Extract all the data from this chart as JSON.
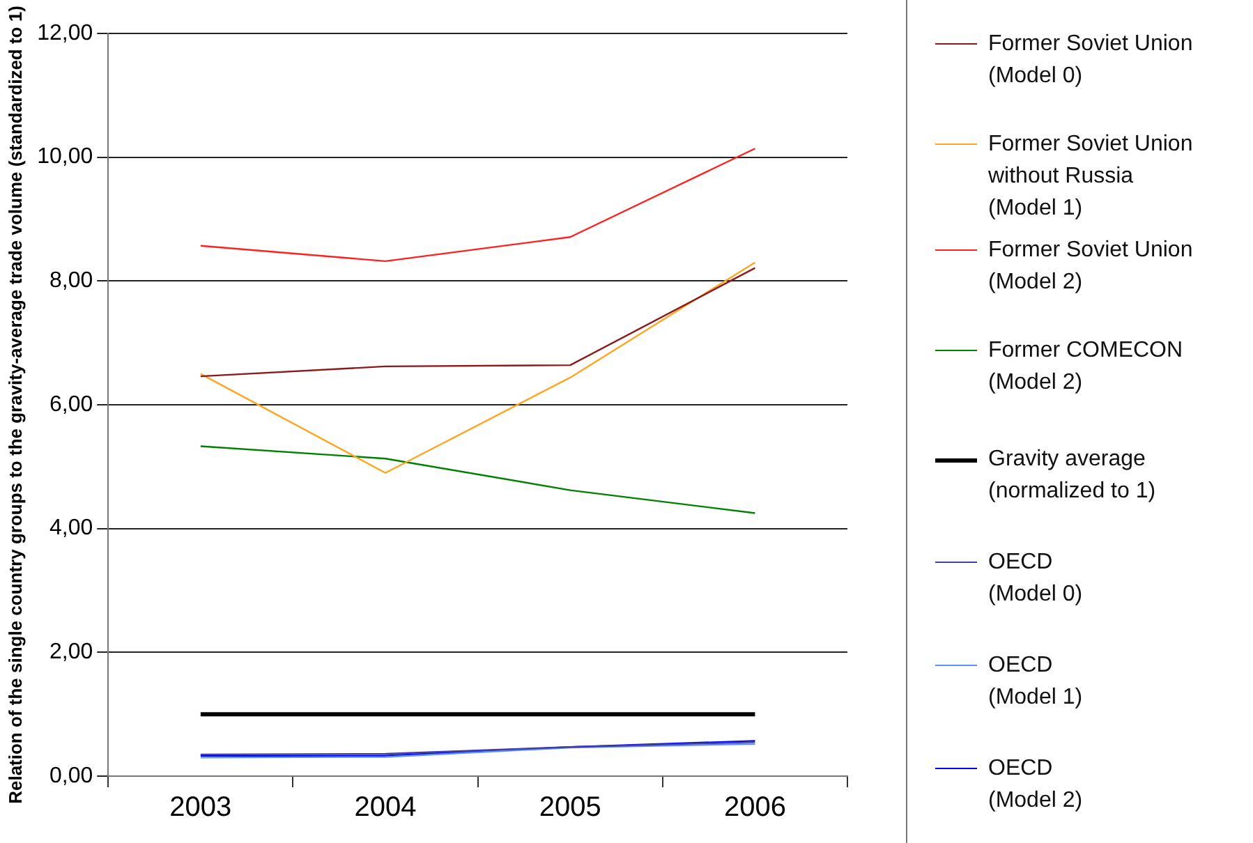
{
  "chart_data": {
    "type": "line",
    "ylabel": "Relation of the single country groups to the gravity-average trade volume (standardized to 1)",
    "categories": [
      "2003",
      "2004",
      "2005",
      "2006"
    ],
    "series": [
      {
        "name": "Former Soviet Union\n(Model 0)",
        "color": "#8b1a1a",
        "values": [
          6.46,
          6.62,
          6.64,
          8.21
        ]
      },
      {
        "name": "Former Soviet Union\nwithout Russia\n(Model 1)",
        "color": "#ffa520",
        "values": [
          6.5,
          4.9,
          6.44,
          8.3
        ]
      },
      {
        "name": "Former Soviet Union\n(Model 2)",
        "color": "#ff2020",
        "values": [
          8.57,
          8.32,
          8.71,
          10.14
        ]
      },
      {
        "name": "Former COMECON\n(Model 2)",
        "color": "#008000",
        "values": [
          5.33,
          5.13,
          4.62,
          4.25
        ]
      },
      {
        "name": "Gravity average\n(normalized to 1)",
        "color": "#000000",
        "values": [
          1,
          1,
          1,
          1
        ]
      },
      {
        "name": "OECD\n(Model 0)",
        "color": "#4040a0",
        "values": [
          0.35,
          0.36,
          0.47,
          0.55
        ]
      },
      {
        "name": "OECD\n(Model 1)",
        "color": "#6090ff",
        "values": [
          0.3,
          0.31,
          0.46,
          0.52
        ]
      },
      {
        "name": "OECD\n(Model 2)",
        "color": "#0000ff",
        "values": [
          0.33,
          0.33,
          0.47,
          0.57
        ]
      }
    ],
    "ylim": [
      0,
      12
    ],
    "yticks": [
      {
        "value": 0,
        "label": "0,00"
      },
      {
        "value": 2,
        "label": "2,00"
      },
      {
        "value": 4,
        "label": "4,00"
      },
      {
        "value": 6,
        "label": "6,00"
      },
      {
        "value": 8,
        "label": "8,00"
      },
      {
        "value": 10,
        "label": "10,00"
      },
      {
        "value": 12,
        "label": "12,00"
      }
    ],
    "grid": "y",
    "legend": "right",
    "marker": "none",
    "line_style": "solid"
  }
}
